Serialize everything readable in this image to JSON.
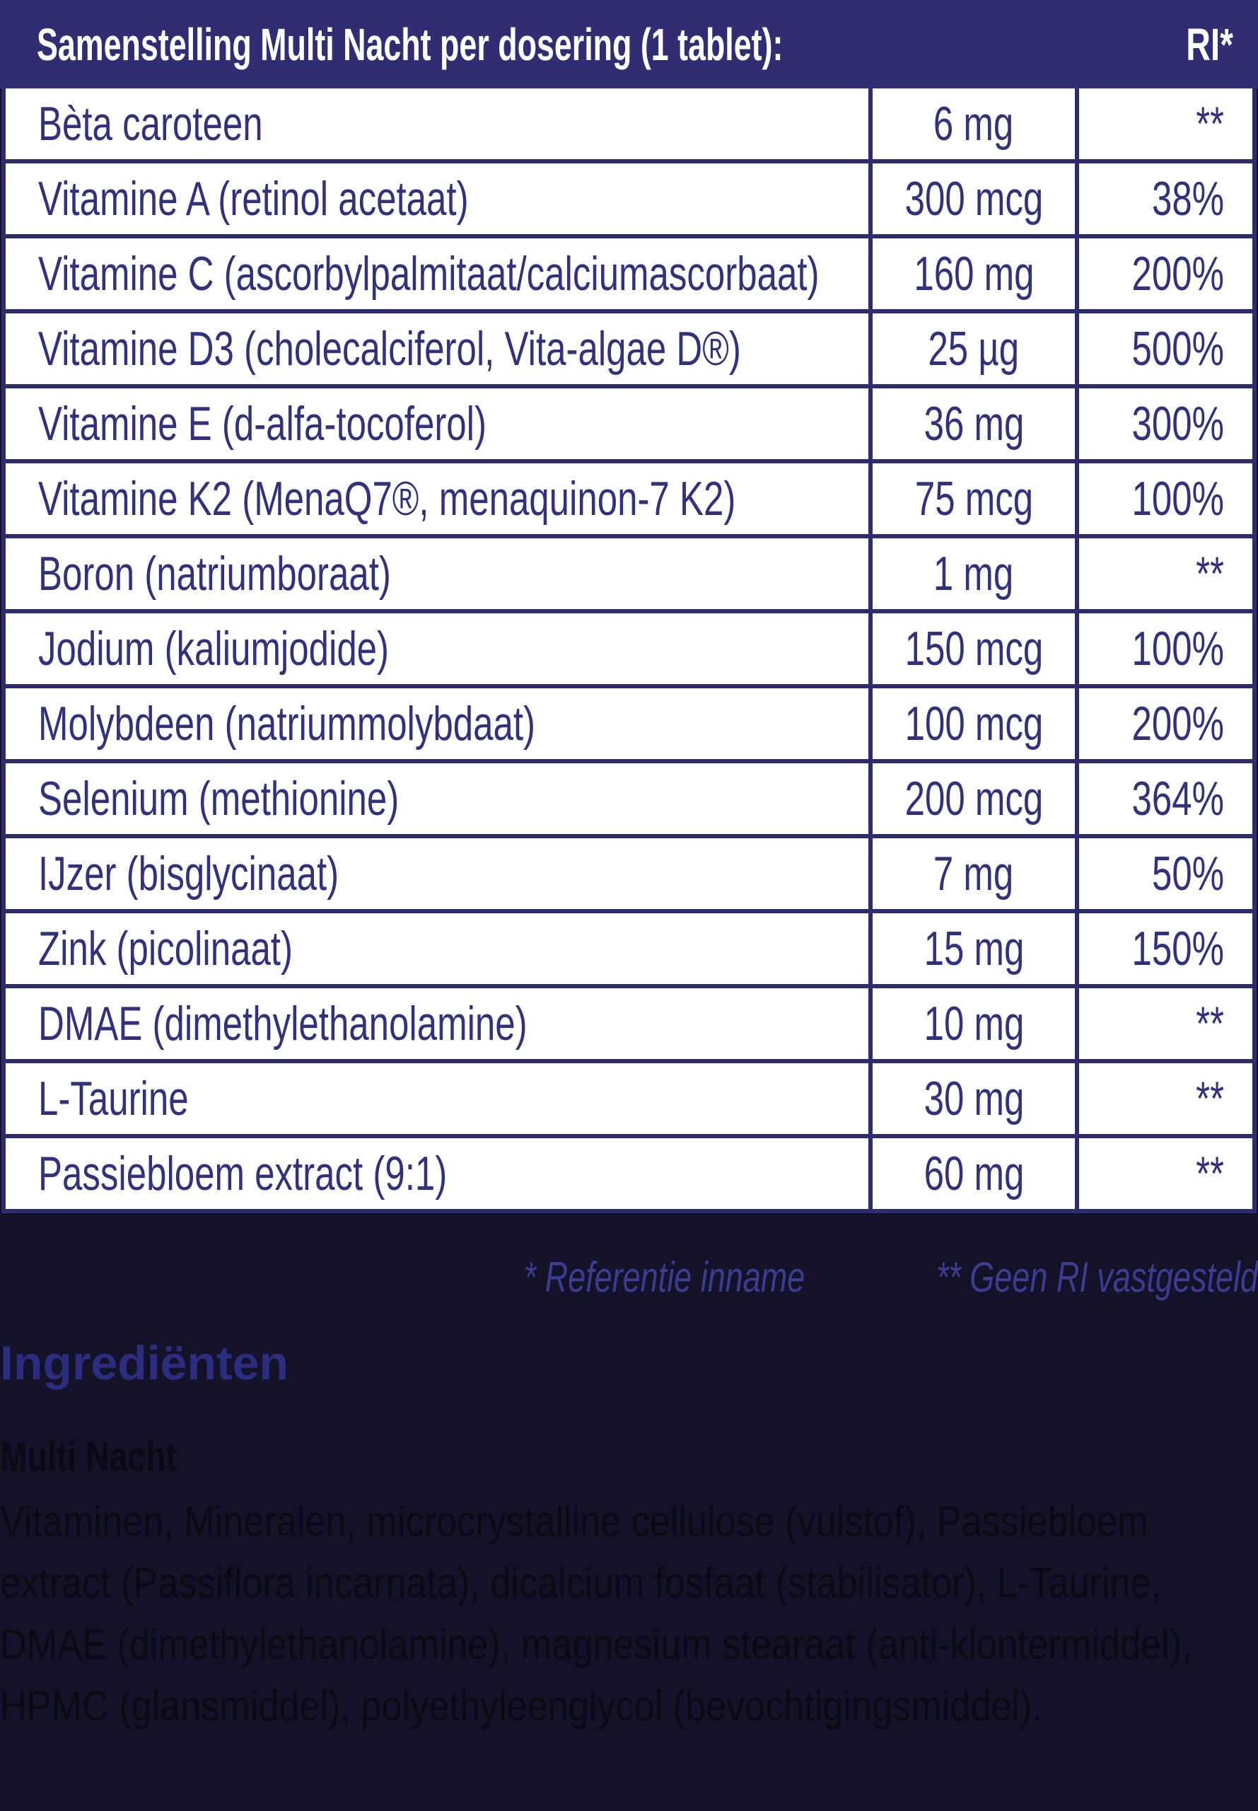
{
  "colors": {
    "header_bg": "#312d72",
    "table_text": "#333179",
    "border": "#2f2b6f",
    "row_bg": "#ffffff",
    "bottom_bg": "#131229",
    "footnote_text": "#3c3c90",
    "heading_text": "#2d2d80",
    "body_text": "#0a0a14"
  },
  "table": {
    "title": "Samenstelling Multi Nacht per dosering (1 tablet):",
    "ri_header": "RI*",
    "rows": [
      {
        "name": "Bèta caroteen",
        "amount": "6 mg",
        "ri": "**"
      },
      {
        "name": "Vitamine A (retinol acetaat)",
        "amount": "300 mcg",
        "ri": "38%"
      },
      {
        "name": "Vitamine C (ascorbylpalmitaat/calciumascorbaat)",
        "amount": "160 mg",
        "ri": "200%"
      },
      {
        "name": "Vitamine D3 (cholecalciferol, Vita-algae D®)",
        "amount": "25 µg",
        "ri": "500%"
      },
      {
        "name": "Vitamine E (d-alfa-tocoferol)",
        "amount": "36 mg",
        "ri": "300%"
      },
      {
        "name": "Vitamine K2 (MenaQ7®, menaquinon-7 K2)",
        "amount": "75 mcg",
        "ri": "100%"
      },
      {
        "name": "Boron (natriumboraat)",
        "amount": "1 mg",
        "ri": "**"
      },
      {
        "name": "Jodium (kaliumjodide)",
        "amount": "150 mcg",
        "ri": "100%"
      },
      {
        "name": "Molybdeen (natriummolybdaat)",
        "amount": "100 mcg",
        "ri": "200%"
      },
      {
        "name": "Selenium (methionine)",
        "amount": "200 mcg",
        "ri": "364%"
      },
      {
        "name": "IJzer (bisglycinaat)",
        "amount": "7 mg",
        "ri": "50%"
      },
      {
        "name": "Zink (picolinaat)",
        "amount": "15 mg",
        "ri": "150%"
      },
      {
        "name": "DMAE (dimethylethanolamine)",
        "amount": "10 mg",
        "ri": "**"
      },
      {
        "name": "L-Taurine",
        "amount": "30 mg",
        "ri": "**"
      },
      {
        "name": "Passiebloem extract (9:1)",
        "amount": "60 mg",
        "ri": "**"
      }
    ]
  },
  "footnote": {
    "ri_note": "* Referentie inname",
    "no_ri_note": "** Geen RI vastgesteld"
  },
  "ingredients": {
    "heading": "Ingrediënten",
    "product_name": "Multi Nacht",
    "text": "Vitaminen, Mineralen, microcrystalline cellulose (vulstof), Passiebloem extract (Passiflora incarnata), dicalcium fosfaat (stabilisator), L-Taurine, DMAE (dimethylethanolamine), magnesium stearaat (anti-klontermiddel), HPMC (glansmiddel), polyethyleenglycol (bevochtigingsmiddel)."
  }
}
